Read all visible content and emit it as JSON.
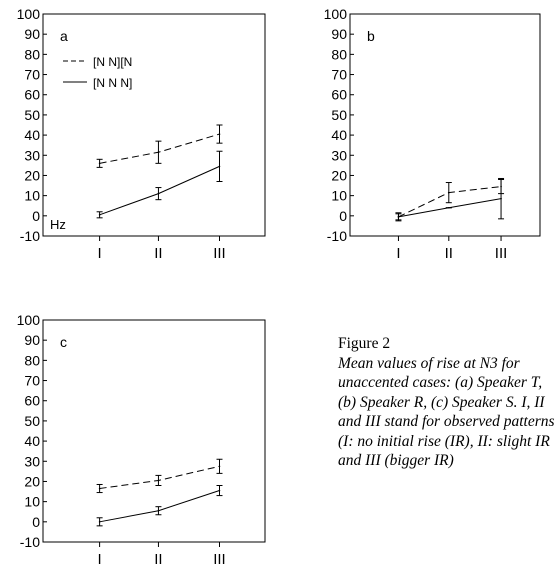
{
  "chart_data": [
    {
      "type": "line",
      "panel_label": "a",
      "unit_label": "Hz",
      "categories": [
        "I",
        "II",
        "III"
      ],
      "y_ticks": [
        "100",
        "90",
        "80",
        "70",
        "60",
        "50",
        "40",
        "30",
        "20",
        "10",
        "0",
        "-10"
      ],
      "ylim": [
        -10,
        100
      ],
      "legend_position": "top-left",
      "series": [
        {
          "name": "[N N][N",
          "style": "dashed",
          "values": [
            26,
            31.5,
            40.5
          ],
          "errors": [
            2,
            5.5,
            4.5
          ]
        },
        {
          "name": "[N N N]",
          "style": "solid",
          "values": [
            0.5,
            11,
            24.5
          ],
          "errors": [
            1.5,
            3,
            7.5
          ]
        }
      ]
    },
    {
      "type": "line",
      "panel_label": "b",
      "categories": [
        "I",
        "II",
        "III"
      ],
      "y_ticks": [
        "100",
        "90",
        "80",
        "70",
        "60",
        "50",
        "40",
        "30",
        "20",
        "10",
        "0",
        "-10"
      ],
      "ylim": [
        -10,
        100
      ],
      "series": [
        {
          "style": "dashed",
          "values": [
            -0.5,
            11.5,
            14.5
          ],
          "errors": [
            2,
            5,
            3.5
          ]
        },
        {
          "style": "solid",
          "values": [
            -0.5,
            4,
            8.5
          ],
          "errors": [
            1.5,
            0,
            10
          ]
        }
      ]
    },
    {
      "type": "line",
      "panel_label": "c",
      "categories": [
        "I",
        "II",
        "III"
      ],
      "y_ticks": [
        "100",
        "90",
        "80",
        "70",
        "60",
        "50",
        "40",
        "30",
        "20",
        "10",
        "0",
        "-10"
      ],
      "ylim": [
        -10,
        100
      ],
      "series": [
        {
          "style": "dashed",
          "values": [
            16.5,
            20.5,
            27.5
          ],
          "errors": [
            2,
            2.5,
            3.5
          ]
        },
        {
          "style": "solid",
          "values": [
            0,
            5.5,
            15.5
          ],
          "errors": [
            2,
            2,
            2.5
          ]
        }
      ]
    }
  ],
  "caption": {
    "title": "Figure 2",
    "body": "Mean values of rise at N3 for unaccented cases: (a) Speaker T, (b) Speaker R, (c) Speaker S. I, II and III stand for observed patterns (I: no initial rise (IR), II: slight IR and III (bigger IR)"
  }
}
